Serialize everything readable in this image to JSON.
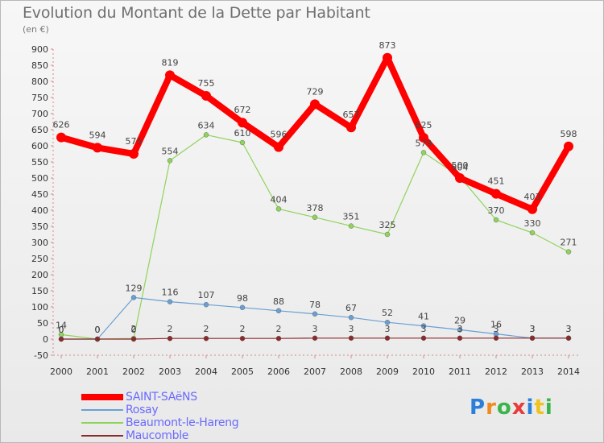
{
  "header": {
    "title": "Evolution du Montant de la Dette par Habitant",
    "unit": "(en €)"
  },
  "chart_data": {
    "type": "line",
    "title": "Evolution du Montant de la Dette par Habitant",
    "subtitle": "(en €)",
    "xlabel": "",
    "ylabel": "",
    "x": [
      2000,
      2001,
      2002,
      2003,
      2004,
      2005,
      2006,
      2007,
      2008,
      2009,
      2010,
      2011,
      2012,
      2013,
      2014
    ],
    "ylim": [
      -50,
      900
    ],
    "yticks": [
      -50,
      0,
      50,
      100,
      150,
      200,
      250,
      300,
      350,
      400,
      450,
      500,
      550,
      600,
      650,
      700,
      750,
      800,
      850,
      900
    ],
    "grid": false,
    "legend_position": "bottom-left",
    "series": [
      {
        "name": "SAINT-SAëNS",
        "color": "#ff0000",
        "values": [
          626,
          594,
          575,
          819,
          755,
          672,
          596,
          729,
          657,
          873,
          625,
          500,
          451,
          403,
          598
        ],
        "labels": [
          "626",
          "594",
          "575",
          "819",
          "755",
          "672",
          "596",
          "729",
          "657",
          "873",
          "625",
          "500",
          "451",
          "403",
          "598"
        ]
      },
      {
        "name": "Rosay",
        "color": "#6a9fd4",
        "values": [
          0,
          0,
          129,
          116,
          107,
          98,
          88,
          78,
          67,
          52,
          41,
          29,
          16,
          3,
          3
        ],
        "labels": [
          "0",
          "0",
          "129",
          "116",
          "107",
          "98",
          "88",
          "78",
          "67",
          "52",
          "41",
          "29",
          "16",
          "3",
          "3"
        ]
      },
      {
        "name": "Beaumont-le-Hareng",
        "color": "#8fd45a",
        "values": [
          14,
          0,
          2,
          554,
          634,
          610,
          404,
          378,
          351,
          325,
          579,
          504,
          370,
          330,
          271
        ],
        "labels": [
          "14",
          "0",
          "2",
          "554",
          "634",
          "610",
          "404",
          "378",
          "351",
          "325",
          "579",
          "504",
          "370",
          "330",
          "271"
        ]
      },
      {
        "name": "Maucomble",
        "color": "#8b2a2a",
        "values": [
          0,
          0,
          0,
          2,
          2,
          2,
          2,
          3,
          3,
          3,
          3,
          3,
          3,
          3,
          3
        ],
        "labels": [
          "0",
          "0",
          "0",
          "2",
          "2",
          "2",
          "2",
          "3",
          "3",
          "3",
          "3",
          "3",
          "3",
          "3",
          "3"
        ]
      }
    ]
  },
  "legend": {
    "items": [
      {
        "label": "SAINT-SAëNS",
        "color": "#ff0000"
      },
      {
        "label": "Rosay",
        "color": "#6a9fd4"
      },
      {
        "label": "Beaumont-le-Hareng",
        "color": "#8fd45a"
      },
      {
        "label": "Maucomble",
        "color": "#8b2a2a"
      }
    ]
  },
  "logo": {
    "letters": [
      "P",
      "r",
      "o",
      "x",
      "i",
      "t",
      "i"
    ],
    "colors": [
      "#2b7fd8",
      "#f08a1c",
      "#3ab54a",
      "#e83a3a",
      "#2b7fd8",
      "#f0c21c",
      "#3ab54a"
    ]
  }
}
